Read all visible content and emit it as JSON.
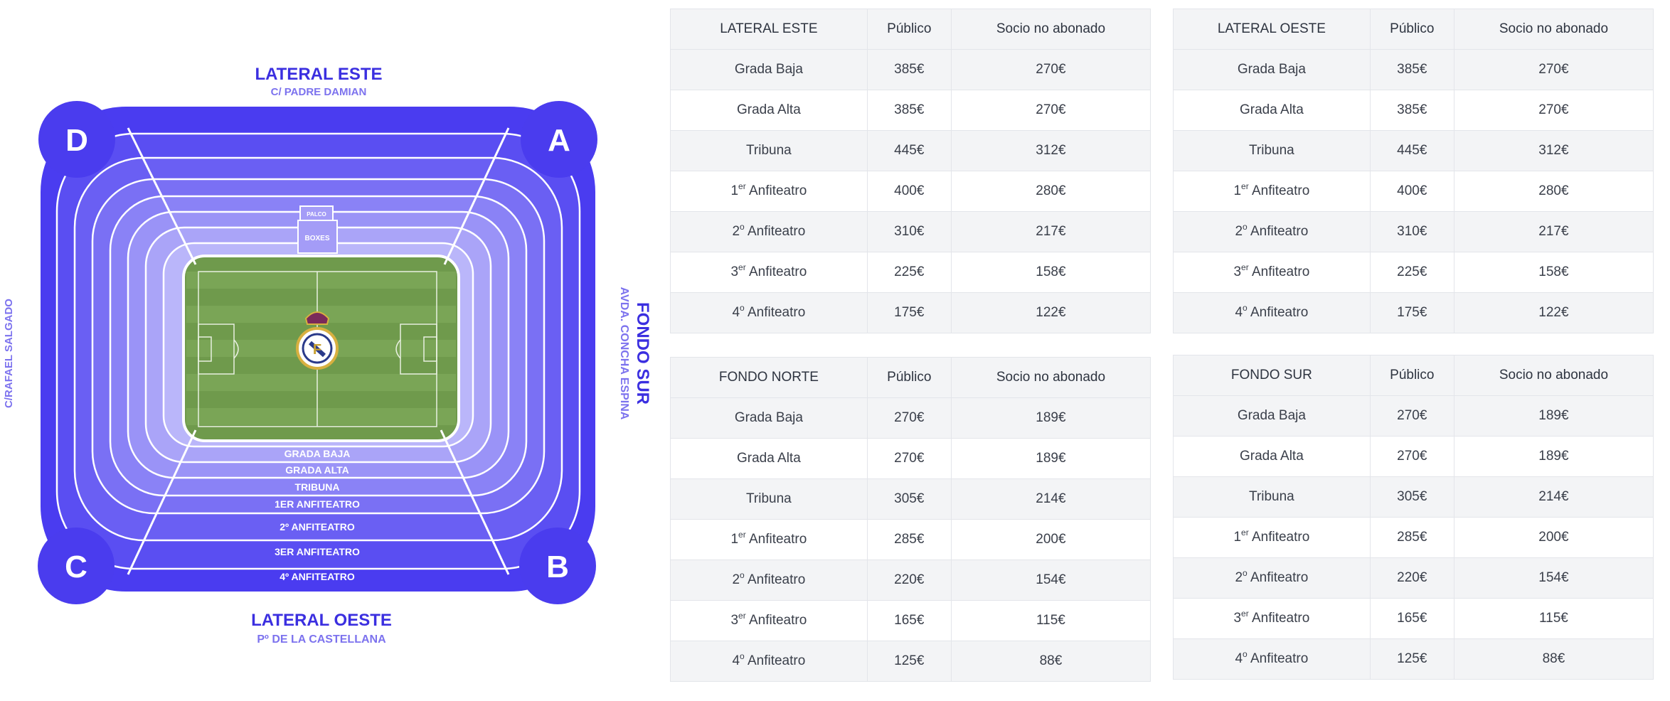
{
  "map": {
    "top_label": "LATERAL ESTE",
    "top_street": "C/ PADRE DAMIAN",
    "bottom_label": "LATERAL OESTE",
    "bottom_street": "Pº DE LA CASTELLANA",
    "left_street": "C/RAFAEL SALGADO",
    "right_label": "FONDO SUR",
    "right_street": "AVDA. CONCHA ESPINA",
    "gates": [
      "A",
      "B",
      "C",
      "D"
    ],
    "palco": "PALCO",
    "boxes": "BOXES",
    "sections": [
      "GRADA BAJA",
      "GRADA ALTA",
      "TRIBUNA",
      "1ER ANFITEATRO",
      "2º ANFITEATRO",
      "3ER ANFITEATRO",
      "4º ANFITEATRO"
    ],
    "colors": {
      "outer": "#4a3cf0",
      "inner": "#bab6fa",
      "pitch": "#6f9a4c",
      "label": "#3b2fe0",
      "street": "#7c72ee"
    }
  },
  "tables": [
    {
      "title": "LATERAL ESTE",
      "col2": "Público",
      "col3": "Socio no abonado",
      "rows": [
        {
          "num": "",
          "sup": "",
          "name": "Grada Baja",
          "publico": "385€",
          "socio": "270€"
        },
        {
          "num": "",
          "sup": "",
          "name": "Grada Alta",
          "publico": "385€",
          "socio": "270€"
        },
        {
          "num": "",
          "sup": "",
          "name": "Tribuna",
          "publico": "445€",
          "socio": "312€"
        },
        {
          "num": "1",
          "sup": "er",
          "name": " Anfiteatro",
          "publico": "400€",
          "socio": "280€"
        },
        {
          "num": "2",
          "sup": "o",
          "name": " Anfiteatro",
          "publico": "310€",
          "socio": "217€"
        },
        {
          "num": "3",
          "sup": "er",
          "name": " Anfiteatro",
          "publico": "225€",
          "socio": "158€"
        },
        {
          "num": "4",
          "sup": "o",
          "name": " Anfiteatro",
          "publico": "175€",
          "socio": "122€"
        }
      ]
    },
    {
      "title": "LATERAL OESTE",
      "col2": "Público",
      "col3": "Socio no abonado",
      "rows": [
        {
          "num": "",
          "sup": "",
          "name": "Grada Baja",
          "publico": "385€",
          "socio": "270€"
        },
        {
          "num": "",
          "sup": "",
          "name": "Grada Alta",
          "publico": "385€",
          "socio": "270€"
        },
        {
          "num": "",
          "sup": "",
          "name": "Tribuna",
          "publico": "445€",
          "socio": "312€"
        },
        {
          "num": "1",
          "sup": "er",
          "name": " Anfiteatro",
          "publico": "400€",
          "socio": "280€"
        },
        {
          "num": "2",
          "sup": "o",
          "name": " Anfiteatro",
          "publico": "310€",
          "socio": "217€"
        },
        {
          "num": "3",
          "sup": "er",
          "name": " Anfiteatro",
          "publico": "225€",
          "socio": "158€"
        },
        {
          "num": "4",
          "sup": "o",
          "name": " Anfiteatro",
          "publico": "175€",
          "socio": "122€"
        }
      ]
    },
    {
      "title": "FONDO NORTE",
      "col2": "Público",
      "col3": "Socio no abonado",
      "rows": [
        {
          "num": "",
          "sup": "",
          "name": "Grada Baja",
          "publico": "270€",
          "socio": "189€"
        },
        {
          "num": "",
          "sup": "",
          "name": "Grada Alta",
          "publico": "270€",
          "socio": "189€"
        },
        {
          "num": "",
          "sup": "",
          "name": "Tribuna",
          "publico": "305€",
          "socio": "214€"
        },
        {
          "num": "1",
          "sup": "er",
          "name": " Anfiteatro",
          "publico": "285€",
          "socio": "200€"
        },
        {
          "num": "2",
          "sup": "o",
          "name": " Anfiteatro",
          "publico": "220€",
          "socio": "154€"
        },
        {
          "num": "3",
          "sup": "er",
          "name": " Anfiteatro",
          "publico": "165€",
          "socio": "115€"
        },
        {
          "num": "4",
          "sup": "o",
          "name": " Anfiteatro",
          "publico": "125€",
          "socio": "88€"
        }
      ]
    },
    {
      "title": "FONDO SUR",
      "col2": "Público",
      "col3": "Socio no abonado",
      "rows": [
        {
          "num": "",
          "sup": "",
          "name": "Grada Baja",
          "publico": "270€",
          "socio": "189€"
        },
        {
          "num": "",
          "sup": "",
          "name": "Grada Alta",
          "publico": "270€",
          "socio": "189€"
        },
        {
          "num": "",
          "sup": "",
          "name": "Tribuna",
          "publico": "305€",
          "socio": "214€"
        },
        {
          "num": "1",
          "sup": "er",
          "name": " Anfiteatro",
          "publico": "285€",
          "socio": "200€"
        },
        {
          "num": "2",
          "sup": "o",
          "name": " Anfiteatro",
          "publico": "220€",
          "socio": "154€"
        },
        {
          "num": "3",
          "sup": "er",
          "name": " Anfiteatro",
          "publico": "165€",
          "socio": "115€"
        },
        {
          "num": "4",
          "sup": "o",
          "name": " Anfiteatro",
          "publico": "125€",
          "socio": "88€"
        }
      ]
    }
  ]
}
